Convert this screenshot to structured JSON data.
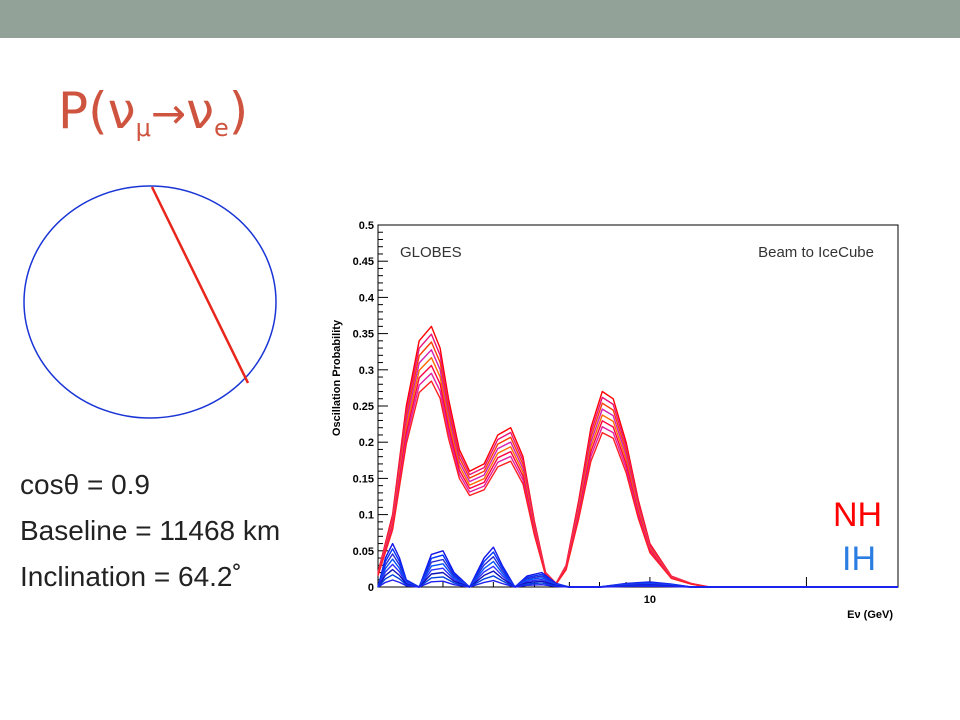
{
  "slide": {
    "title_main": "P(νμ",
    "title_arrow": "→",
    "title_end": "νe)",
    "title_sub_mu": "μ",
    "title_sub_e": "e",
    "info": [
      {
        "label": "cosθ",
        "value": "= 0.9"
      },
      {
        "label": "Baseline",
        "value": "= 11468 km"
      },
      {
        "label": "Inclination",
        "value": "= 64.2˚"
      }
    ],
    "legend_nh": "NH",
    "legend_ih": "IH",
    "colors": {
      "topbar": "#93a299",
      "title": "#cf543f",
      "nh": "#ff0000",
      "ih": "#2a7de1",
      "circle": "#1a35d6",
      "chord": "#e8261c"
    }
  },
  "chart_data": {
    "type": "line",
    "annotation_left": "GLOBES",
    "annotation_right": "Beam to IceCube",
    "ylabel": "Oscillation Probability",
    "xlabel": "Eν (GeV)",
    "x_scale": "log",
    "xlim": [
      3,
      30
    ],
    "ylim": [
      0,
      0.5
    ],
    "yticks": [
      "0",
      "0.05",
      "0.1",
      "0.15",
      "0.2",
      "0.25",
      "0.3",
      "0.35",
      "0.4",
      "0.45",
      "0.5"
    ],
    "xtick_labels": [
      {
        "x": 10,
        "label": "10"
      }
    ],
    "series": [
      {
        "name": "NH",
        "color": "#ff0000",
        "x": [
          3.0,
          3.2,
          3.4,
          3.6,
          3.8,
          3.95,
          4.1,
          4.3,
          4.5,
          4.8,
          5.1,
          5.4,
          5.7,
          6.0,
          6.3,
          6.6,
          6.9,
          7.3,
          7.7,
          8.1,
          8.5,
          9.0,
          9.5,
          10.0,
          11,
          12,
          13,
          15,
          20,
          30
        ],
        "y": [
          0.02,
          0.1,
          0.25,
          0.34,
          0.36,
          0.33,
          0.26,
          0.19,
          0.16,
          0.17,
          0.21,
          0.22,
          0.18,
          0.09,
          0.02,
          0.005,
          0.03,
          0.12,
          0.22,
          0.27,
          0.26,
          0.2,
          0.12,
          0.06,
          0.015,
          0.005,
          0.0,
          0.0,
          0.0,
          0.0
        ]
      },
      {
        "name": "IH",
        "color": "#1414e6",
        "x": [
          3.0,
          3.1,
          3.2,
          3.3,
          3.4,
          3.6,
          3.8,
          4.0,
          4.2,
          4.5,
          4.8,
          5.0,
          5.2,
          5.5,
          5.8,
          6.2,
          6.6,
          7.0,
          7.5,
          8.0,
          9.0,
          10.0,
          11.0,
          12.0,
          14,
          20,
          30
        ],
        "y": [
          0.0,
          0.04,
          0.06,
          0.04,
          0.01,
          0.0,
          0.045,
          0.05,
          0.02,
          0.0,
          0.04,
          0.055,
          0.03,
          0.0,
          0.015,
          0.02,
          0.005,
          0.0,
          0.0,
          0.0,
          0.005,
          0.007,
          0.004,
          0.0,
          0.0,
          0.0,
          0.0
        ]
      }
    ]
  }
}
